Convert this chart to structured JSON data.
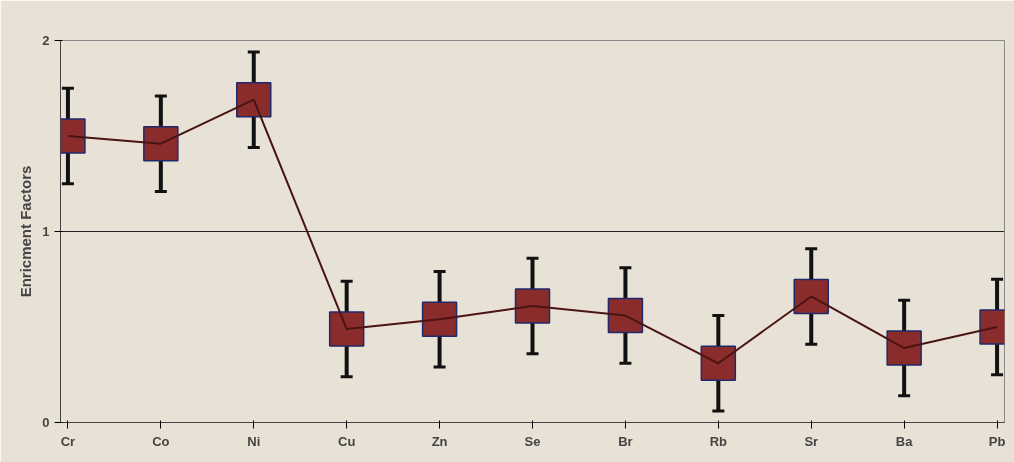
{
  "chart_data": {
    "type": "line",
    "ylabel": "Enricment Factors",
    "categories": [
      "Cr",
      "Co",
      "Ni",
      "Cu",
      "Zn",
      "Se",
      "Br",
      "Rb",
      "Sr",
      "Ba",
      "Pb"
    ],
    "series": [
      {
        "color": "#8b2c2c",
        "values": [
          1.5,
          1.46,
          1.69,
          0.49,
          0.54,
          0.61,
          0.56,
          0.31,
          0.66,
          0.39,
          0.5
        ],
        "errors": [
          0.25,
          0.25,
          0.25,
          0.25,
          0.25,
          0.25,
          0.25,
          0.25,
          0.25,
          0.25,
          0.25
        ]
      }
    ],
    "ylim": [
      0,
      2
    ],
    "yticks": [
      0,
      1,
      2
    ],
    "grid": "y",
    "marker": "square",
    "line_style": "solid"
  }
}
